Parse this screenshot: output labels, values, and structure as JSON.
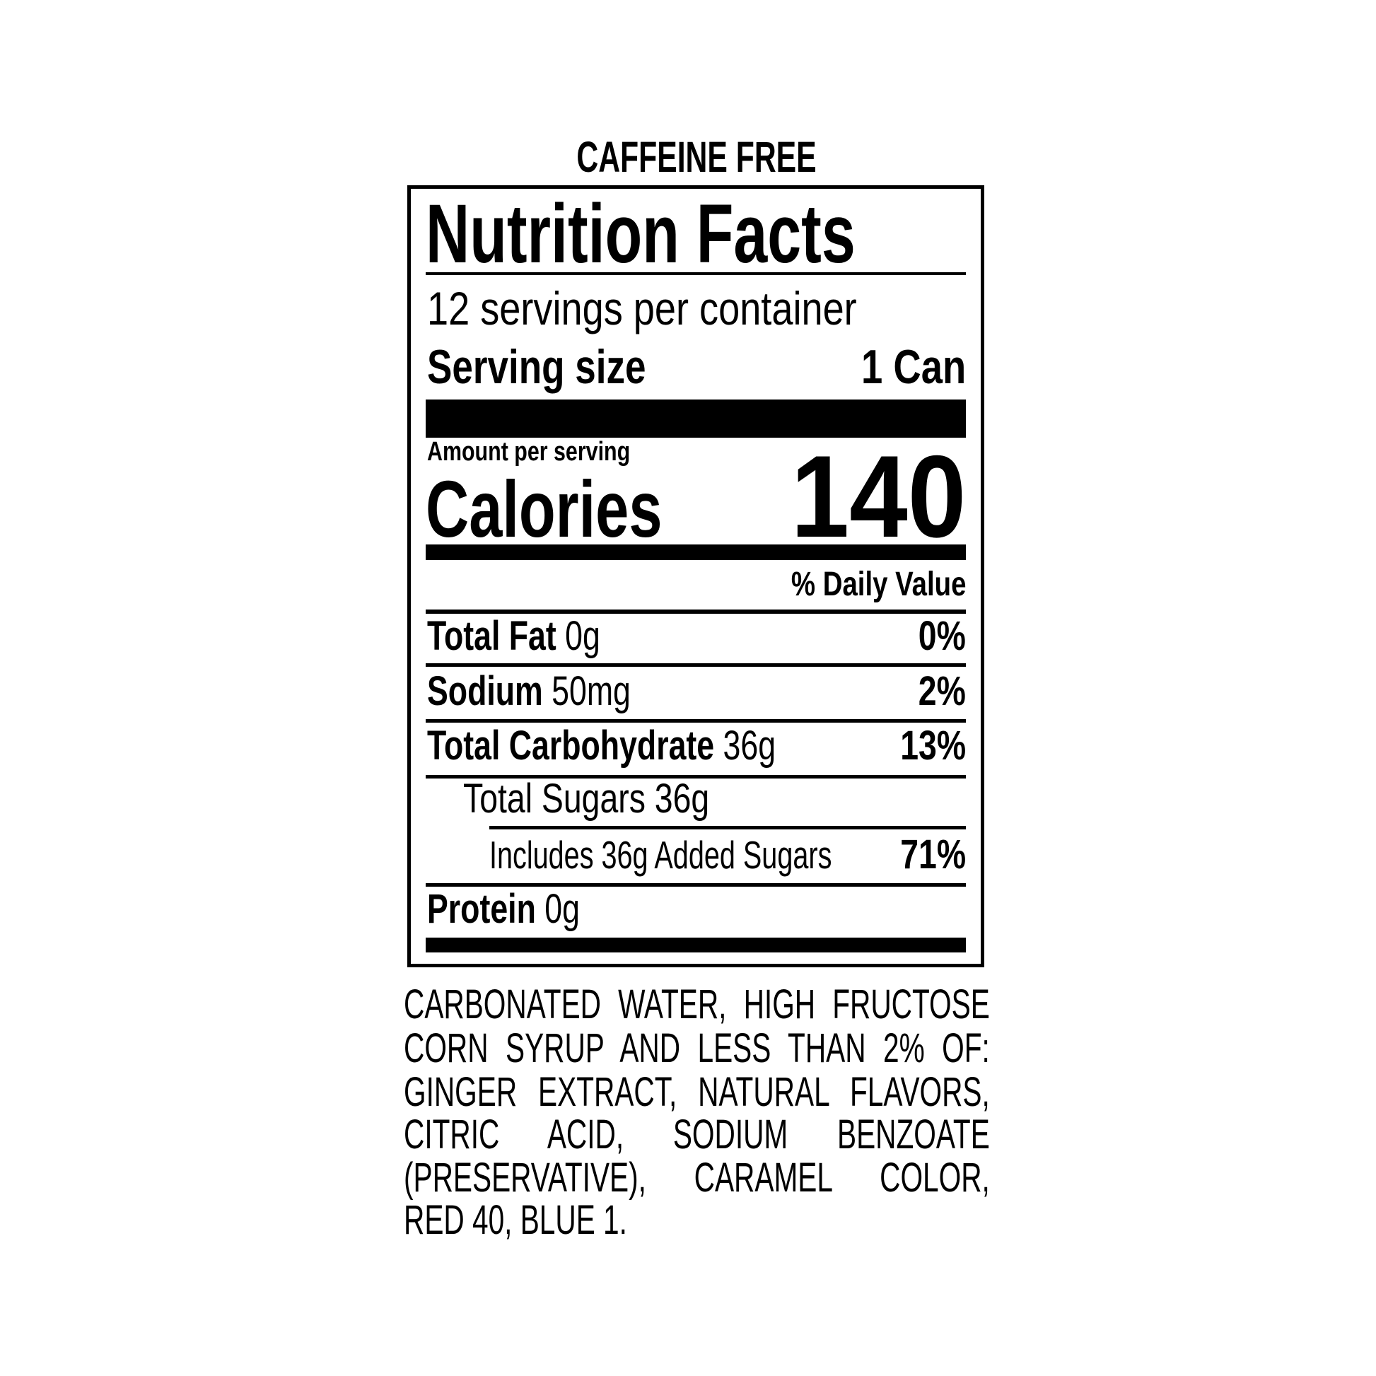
{
  "header": {
    "caffeine_note": "CAFFEINE FREE"
  },
  "label": {
    "title": "Nutrition Facts",
    "servings_per_container": "12 servings per container",
    "serving_size_label": "Serving size",
    "serving_size_value": "1 Can",
    "amount_per_serving": "Amount per serving",
    "calories_label": "Calories",
    "calories_value": "140",
    "daily_value_header": "% Daily Value",
    "nutrients": [
      {
        "name": "Total Fat",
        "amount": "0g",
        "dv": "0%"
      },
      {
        "name": "Sodium",
        "amount": "50mg",
        "dv": "2%"
      },
      {
        "name": "Total Carbohydrate",
        "amount": "36g",
        "dv": "13%"
      },
      {
        "name": "Total Sugars 36g"
      },
      {
        "name": "Includes 36g Added Sugars",
        "dv": "71%"
      },
      {
        "name": "Protein",
        "amount": "0g"
      }
    ]
  },
  "ingredients": {
    "lines": [
      "CARBONATED WATER, HIGH FRUCTOSE",
      "CORN SYRUP AND LESS THAN 2% OF:",
      "GINGER EXTRACT, NATURAL FLAVORS,",
      "CITRIC ACID, SODIUM BENZOATE",
      "(PRESERVATIVE), CARAMEL COLOR,",
      "RED 40, BLUE 1."
    ]
  }
}
